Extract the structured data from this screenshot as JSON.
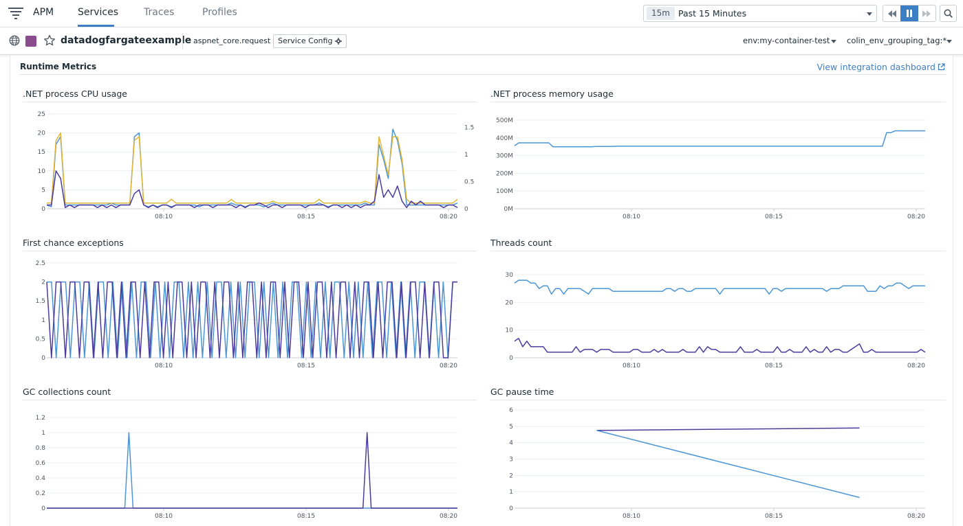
{
  "nav": {
    "brand": "APM",
    "tabs": [
      {
        "label": "Services",
        "active": true
      },
      {
        "label": "Traces",
        "active": false
      },
      {
        "label": "Profiles",
        "active": false
      }
    ],
    "time": {
      "badge": "15m",
      "label": "Past 15 Minutes"
    },
    "controls": [
      "rewind-icon",
      "pause-icon",
      "forward-icon"
    ],
    "search_icon": "search-icon"
  },
  "service": {
    "name": "datadogfargateexample",
    "color": "#8a4a8e",
    "operation": "aspnet_core.request",
    "config_button": "Service Config",
    "env": "env:my-container-test",
    "grouping": "colin_env_grouping_tag:*"
  },
  "section": {
    "title": "Runtime Metrics",
    "link": "View integration dashboard"
  },
  "colors": {
    "blue": "#4a95d6",
    "purple": "#4b3a9c",
    "gold": "#e0b636",
    "accent": "#3d7fc4"
  },
  "charts": {
    "cpu": {
      "title": ".NET process CPU usage",
      "chart_data": {
        "type": "line",
        "x_ticks": [
          "08:10",
          "08:15",
          "08:20"
        ],
        "y_ticks": [
          "25",
          "20",
          "15",
          "10",
          "5",
          "0"
        ],
        "y2_ticks": [
          "1.5",
          "1",
          "0.5",
          "0"
        ],
        "ylim": [
          0,
          25
        ],
        "y2lim": [
          0,
          1.75
        ],
        "series": [
          {
            "color": "#4a95d6",
            "values": [
              1,
              0.5,
              17,
              19,
              1,
              1,
              1,
              1,
              1,
              1,
              1,
              1,
              1,
              1,
              1.5,
              1,
              1,
              1,
              1,
              19,
              20,
              1,
              0.5,
              1,
              0.5,
              1,
              1,
              0.5,
              1,
              1,
              1,
              1,
              1,
              0.5,
              1,
              1,
              1,
              1,
              1,
              1,
              1.5,
              1,
              1,
              0.5,
              1,
              1,
              1,
              0.5,
              1,
              1.5,
              1,
              1,
              1,
              1,
              1,
              1,
              1,
              1,
              1,
              1.5,
              1,
              0.5,
              1,
              1,
              1,
              1,
              1,
              1,
              1,
              1.5,
              1,
              1,
              17,
              13,
              8,
              21,
              18,
              12,
              1,
              1,
              1,
              1,
              1,
              1,
              1,
              1,
              1,
              1,
              1,
              1.5
            ]
          },
          {
            "color": "#e0b636",
            "values": [
              1.5,
              1.5,
              18,
              20,
              1.5,
              1.5,
              1.5,
              1.5,
              1.5,
              1.5,
              1.5,
              1.5,
              1.5,
              1.5,
              1.5,
              1.5,
              1.5,
              1.5,
              1.5,
              18,
              19,
              1.5,
              1.5,
              1.5,
              1.5,
              1.5,
              1.5,
              2.5,
              1.5,
              1.5,
              1.5,
              1.5,
              1.5,
              1.5,
              1.5,
              1.5,
              1.5,
              1.5,
              1.5,
              1.5,
              2.5,
              1.5,
              1.5,
              1.5,
              1.5,
              1.5,
              1.5,
              1.5,
              1.5,
              2,
              1.5,
              1.5,
              1.5,
              1.5,
              1.5,
              1.5,
              1.5,
              1.5,
              1.5,
              2.5,
              1.5,
              1.5,
              1.5,
              1.5,
              1.5,
              1.5,
              1.5,
              1.5,
              1.5,
              2,
              1.5,
              1.5,
              19,
              14,
              9,
              19,
              19,
              13,
              2.5,
              1.5,
              1.5,
              1.5,
              1.5,
              1.5,
              1.5,
              1.5,
              1.5,
              1.5,
              1.5,
              2.5
            ]
          },
          {
            "color": "#4b3a9c",
            "values": [
              1,
              1,
              10,
              8,
              0.3,
              1,
              0.3,
              1,
              1,
              1,
              1,
              0.3,
              1,
              0.3,
              1,
              0.3,
              1,
              1,
              1,
              4,
              5,
              1,
              0.3,
              1,
              0.3,
              1,
              1,
              0.3,
              1,
              1,
              1,
              1,
              0.3,
              1,
              1,
              1,
              0.3,
              1,
              1,
              1,
              1,
              0.3,
              1,
              0.3,
              1,
              1,
              1.5,
              1,
              0.3,
              1,
              1,
              0.3,
              1,
              1,
              1,
              1,
              0.3,
              1,
              1,
              1,
              1,
              0.3,
              1,
              1,
              0.3,
              1,
              0.3,
              1,
              0.3,
              1,
              1,
              2,
              9,
              3,
              5,
              3,
              6,
              2,
              0.3,
              2,
              1,
              2,
              1,
              1,
              1,
              1,
              0.3,
              1,
              1,
              0.3
            ]
          }
        ]
      }
    },
    "memory": {
      "title": ".NET process memory usage",
      "chart_data": {
        "type": "line",
        "x_ticks": [
          "08:10",
          "08:15",
          "08:20"
        ],
        "y_ticks": [
          "500M",
          "400M",
          "300M",
          "200M",
          "100M",
          "0M"
        ],
        "ylim": [
          0,
          500
        ],
        "series": [
          {
            "color": "#4a95d6",
            "values": [
              355,
              372,
              372,
              372,
              372,
              372,
              372,
              372,
              372,
              350,
              350,
              350,
              350,
              350,
              350,
              350,
              350,
              350,
              350,
              352,
              352,
              352,
              352,
              352,
              353,
              353,
              353,
              353,
              353,
              353,
              353,
              353,
              353,
              353,
              353,
              353,
              353,
              353,
              353,
              353,
              353,
              353,
              353,
              353,
              353,
              353,
              353,
              353,
              353,
              353,
              353,
              353,
              353,
              353,
              353,
              353,
              353,
              353,
              353,
              353,
              353,
              353,
              353,
              353,
              353,
              353,
              353,
              353,
              353,
              353,
              353,
              353,
              353,
              353,
              353,
              353,
              353,
              353,
              353,
              353,
              353,
              353,
              353,
              353,
              353,
              353,
              353,
              430,
              430,
              440,
              440,
              440,
              440,
              440,
              440,
              440,
              440
            ]
          }
        ]
      }
    },
    "exceptions": {
      "title": "First chance exceptions",
      "chart_data": {
        "type": "line",
        "x_ticks": [
          "08:10",
          "08:15",
          "08:20"
        ],
        "y_ticks": [
          "2.5",
          "2",
          "1.5",
          "1",
          "0.5",
          "0"
        ],
        "ylim": [
          0,
          2.5
        ],
        "series": [
          {
            "color": "#4a95d6",
            "values": [
              2,
              2,
              0,
              2,
              2,
              0,
              2,
              2,
              0,
              2,
              0,
              2,
              2,
              0,
              2,
              0,
              2,
              0,
              2,
              0,
              2,
              2,
              0,
              2,
              0,
              2,
              0,
              2,
              2,
              0,
              2,
              0,
              2,
              0,
              2,
              0,
              2,
              2,
              0,
              2,
              0,
              2,
              0,
              2,
              2,
              0,
              2,
              0,
              2,
              0,
              2,
              0,
              2,
              2,
              0,
              2,
              0,
              2,
              0,
              2,
              0,
              2,
              2,
              0,
              2,
              0,
              2,
              0,
              2,
              0,
              2,
              2,
              0,
              2,
              0,
              2,
              0,
              2,
              0,
              2,
              2,
              0,
              2,
              0,
              2,
              0,
              2,
              2
            ]
          },
          {
            "color": "#4b3a9c",
            "values": [
              2,
              0,
              2,
              2,
              0,
              2,
              2,
              0,
              2,
              2,
              0,
              2,
              0,
              2,
              2,
              0,
              2,
              0,
              2,
              2,
              0,
              2,
              0,
              2,
              2,
              0,
              2,
              0,
              2,
              2,
              0,
              2,
              0,
              2,
              2,
              0,
              2,
              0,
              2,
              2,
              0,
              2,
              0,
              2,
              2,
              0,
              2,
              0,
              2,
              2,
              0,
              2,
              0,
              2,
              2,
              0,
              2,
              0,
              2,
              2,
              0,
              2,
              0,
              2,
              2,
              0,
              2,
              0,
              2,
              2,
              0,
              2,
              0,
              2,
              2,
              0,
              2,
              0,
              2,
              2,
              0,
              2,
              0,
              2,
              2,
              0,
              0,
              2,
              2
            ]
          }
        ]
      }
    },
    "threads": {
      "title": "Threads count",
      "chart_data": {
        "type": "line",
        "x_ticks": [
          "08:10",
          "08:15",
          "08:20"
        ],
        "y_ticks": [
          "30",
          "20",
          "10",
          "0"
        ],
        "ylim": [
          0,
          32
        ],
        "series": [
          {
            "color": "#4a95d6",
            "values": [
              27,
              28,
              28,
              28,
              27,
              27,
              25,
              26,
              26,
              23,
              25,
              25,
              23,
              25,
              25,
              25,
              25,
              24,
              23,
              25,
              25,
              25,
              25,
              25,
              24,
              24,
              24,
              24,
              24,
              24,
              24,
              24,
              24,
              24,
              24,
              24,
              24,
              25,
              25,
              24,
              25,
              25,
              24,
              24,
              25,
              25,
              25,
              25,
              25,
              25,
              23,
              25,
              25,
              25,
              25,
              25,
              25,
              25,
              25,
              25,
              25,
              25,
              23,
              25,
              25,
              24,
              25,
              25,
              25,
              25,
              25,
              25,
              25,
              25,
              25,
              25,
              24,
              25,
              25,
              25,
              26,
              26,
              26,
              26,
              26,
              26,
              24,
              24,
              24,
              26,
              25,
              26,
              26,
              27,
              27,
              26,
              25,
              26,
              26,
              26,
              26
            ]
          },
          {
            "color": "#4b3a9c",
            "values": [
              6,
              7,
              4,
              6,
              4,
              4,
              4,
              4,
              2,
              2,
              2,
              2,
              2,
              2,
              2,
              4,
              2,
              3,
              3,
              3,
              2,
              3,
              3,
              3,
              2,
              2,
              2,
              2,
              2,
              3,
              3,
              2,
              2,
              2,
              3,
              2,
              3,
              2,
              2,
              2,
              2,
              3,
              2,
              2,
              2,
              4,
              2,
              4,
              3,
              3,
              2,
              2,
              2,
              2,
              2,
              4,
              2,
              2,
              2,
              3,
              2,
              2,
              2,
              2,
              4,
              2,
              2,
              3,
              2,
              2,
              2,
              4,
              2,
              3,
              2,
              2,
              4,
              2,
              3,
              3,
              2,
              2,
              3,
              4,
              5,
              2,
              2,
              3,
              2,
              2,
              2,
              2,
              2,
              2,
              2,
              2,
              2,
              2,
              2,
              3,
              2
            ]
          }
        ]
      }
    },
    "gc_count": {
      "title": "GC collections count",
      "chart_data": {
        "type": "line",
        "x_ticks": [
          "08:10",
          "08:15",
          "08:20"
        ],
        "y_ticks": [
          "1.2",
          "1",
          "0.8",
          "0.6",
          "0.4",
          "0.2",
          "0"
        ],
        "ylim": [
          0,
          1.2
        ],
        "series": [
          {
            "color": "#4a95d6",
            "points": [
              [
                0,
                0
              ],
              [
                19,
                0
              ],
              [
                20,
                1
              ],
              [
                21,
                0
              ],
              [
                100,
                0
              ]
            ]
          },
          {
            "color": "#4b3a9c",
            "points": [
              [
                0,
                0
              ],
              [
                77,
                0
              ],
              [
                78,
                1
              ],
              [
                79,
                0
              ],
              [
                100,
                0
              ]
            ]
          }
        ]
      }
    },
    "gc_pause": {
      "title": "GC pause time",
      "chart_data": {
        "type": "line",
        "x_ticks": [
          "08:10",
          "08:15",
          "08:20"
        ],
        "y_ticks": [
          "6",
          "5",
          "4",
          "3",
          "2",
          "1",
          "0"
        ],
        "ylim": [
          0,
          6
        ],
        "series": [
          {
            "color": "#4b3a9c",
            "points": [
              [
                20,
                4.75
              ],
              [
                84,
                4.9
              ]
            ]
          },
          {
            "color": "#4a95d6",
            "points": [
              [
                20,
                4.75
              ],
              [
                84,
                0.65
              ]
            ]
          }
        ]
      }
    }
  }
}
